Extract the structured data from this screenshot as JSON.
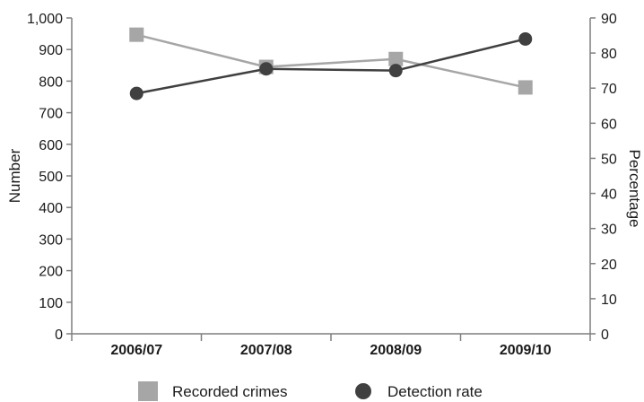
{
  "chart_data": {
    "type": "line",
    "categories": [
      "2006/07",
      "2007/08",
      "2008/09",
      "2009/10"
    ],
    "series": [
      {
        "name": "Recorded crimes",
        "axis": "left",
        "marker": "square",
        "color": "#a6a6a6",
        "values": [
          947,
          845,
          870,
          780
        ]
      },
      {
        "name": "Detection rate",
        "axis": "right",
        "marker": "circle",
        "color": "#404040",
        "values": [
          68.5,
          75.5,
          75,
          84
        ]
      }
    ],
    "ylabel_left": "Number",
    "ylabel_right": "Percentage",
    "ylim_left": [
      0,
      1000
    ],
    "ylim_right": [
      0,
      90
    ],
    "yticks_left": [
      "0",
      "100",
      "200",
      "300",
      "400",
      "500",
      "600",
      "700",
      "800",
      "900",
      "1,000"
    ],
    "yticks_right": [
      "0",
      "10",
      "20",
      "30",
      "40",
      "50",
      "60",
      "70",
      "80",
      "90"
    ],
    "grid": false,
    "legend_position": "bottom"
  }
}
